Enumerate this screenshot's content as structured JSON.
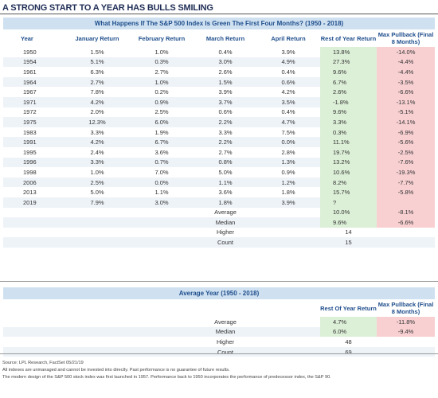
{
  "title": "A STRONG START TO A YEAR HAS BULLS SMILING",
  "chart_data": [
    {
      "type": "table",
      "title": "What Happens If The S&P 500 Index Is Green The First Four Months? (1950 - 2018)",
      "columns": [
        "Year",
        "January Return",
        "February Return",
        "March Return",
        "April Return",
        "Rest of Year Return",
        "Max Pullback (Final 8 Months)"
      ],
      "rows": [
        [
          "1950",
          "1.5%",
          "1.0%",
          "0.4%",
          "3.9%",
          "13.8%",
          "-14.0%"
        ],
        [
          "1954",
          "5.1%",
          "0.3%",
          "3.0%",
          "4.9%",
          "27.3%",
          "-4.4%"
        ],
        [
          "1961",
          "6.3%",
          "2.7%",
          "2.6%",
          "0.4%",
          "9.6%",
          "-4.4%"
        ],
        [
          "1964",
          "2.7%",
          "1.0%",
          "1.5%",
          "0.6%",
          "6.7%",
          "-3.5%"
        ],
        [
          "1967",
          "7.8%",
          "0.2%",
          "3.9%",
          "4.2%",
          "2.6%",
          "-6.6%"
        ],
        [
          "1971",
          "4.2%",
          "0.9%",
          "3.7%",
          "3.5%",
          "-1.8%",
          "-13.1%"
        ],
        [
          "1972",
          "2.0%",
          "2.5%",
          "0.6%",
          "0.4%",
          "9.6%",
          "-5.1%"
        ],
        [
          "1975",
          "12.3%",
          "6.0%",
          "2.2%",
          "4.7%",
          "3.3%",
          "-14.1%"
        ],
        [
          "1983",
          "3.3%",
          "1.9%",
          "3.3%",
          "7.5%",
          "0.3%",
          "-6.9%"
        ],
        [
          "1991",
          "4.2%",
          "6.7%",
          "2.2%",
          "0.0%",
          "11.1%",
          "-5.6%"
        ],
        [
          "1995",
          "2.4%",
          "3.6%",
          "2.7%",
          "2.8%",
          "19.7%",
          "-2.5%"
        ],
        [
          "1996",
          "3.3%",
          "0.7%",
          "0.8%",
          "1.3%",
          "13.2%",
          "-7.6%"
        ],
        [
          "1998",
          "1.0%",
          "7.0%",
          "5.0%",
          "0.9%",
          "10.6%",
          "-19.3%"
        ],
        [
          "2006",
          "2.5%",
          "0.0%",
          "1.1%",
          "1.2%",
          "8.2%",
          "-7.7%"
        ],
        [
          "2013",
          "5.0%",
          "1.1%",
          "3.6%",
          "1.8%",
          "15.7%",
          "-5.8%"
        ],
        [
          "2019",
          "7.9%",
          "3.0%",
          "1.8%",
          "3.9%",
          "?",
          ""
        ]
      ],
      "summary": [
        {
          "label": "Average",
          "rest": "10.0%",
          "pullback": "-8.1%"
        },
        {
          "label": "Median",
          "rest": "9.6%",
          "pullback": "-6.6%"
        },
        {
          "label": "Higher",
          "rest": "14",
          "pullback": ""
        },
        {
          "label": "Count",
          "rest": "15",
          "pullback": ""
        }
      ]
    },
    {
      "type": "table",
      "title": "Average Year (1950 - 2018)",
      "columns": [
        "Rest Of Year Return",
        "Max Pullback (Final 8 Months)"
      ],
      "rows": [
        {
          "label": "Average",
          "rest": "4.7%",
          "pullback": "-11.8%"
        },
        {
          "label": "Median",
          "rest": "6.0%",
          "pullback": "-9.4%"
        },
        {
          "label": "Higher",
          "rest": "48",
          "pullback": ""
        },
        {
          "label": "Count",
          "rest": "69",
          "pullback": ""
        }
      ]
    }
  ],
  "footnotes": [
    "Source: LPL Research, FactSet  05/21/19",
    "All indexes are unmanaged and cannot be invested into directly. Past performance is no guarantee of future results.",
    "The modern design of the S&P 500 stock index was first launched in 1957. Performance back to 1950 incorporates the performance of predecessor index, the S&P 90."
  ],
  "colors": {
    "header_band": "#cfe1f1",
    "header_text": "#1f4e8c",
    "row_alt": "#eef3f8",
    "green_cell": "#dcefd7",
    "red_cell": "#f8d0d2",
    "title": "#1f2d55"
  }
}
